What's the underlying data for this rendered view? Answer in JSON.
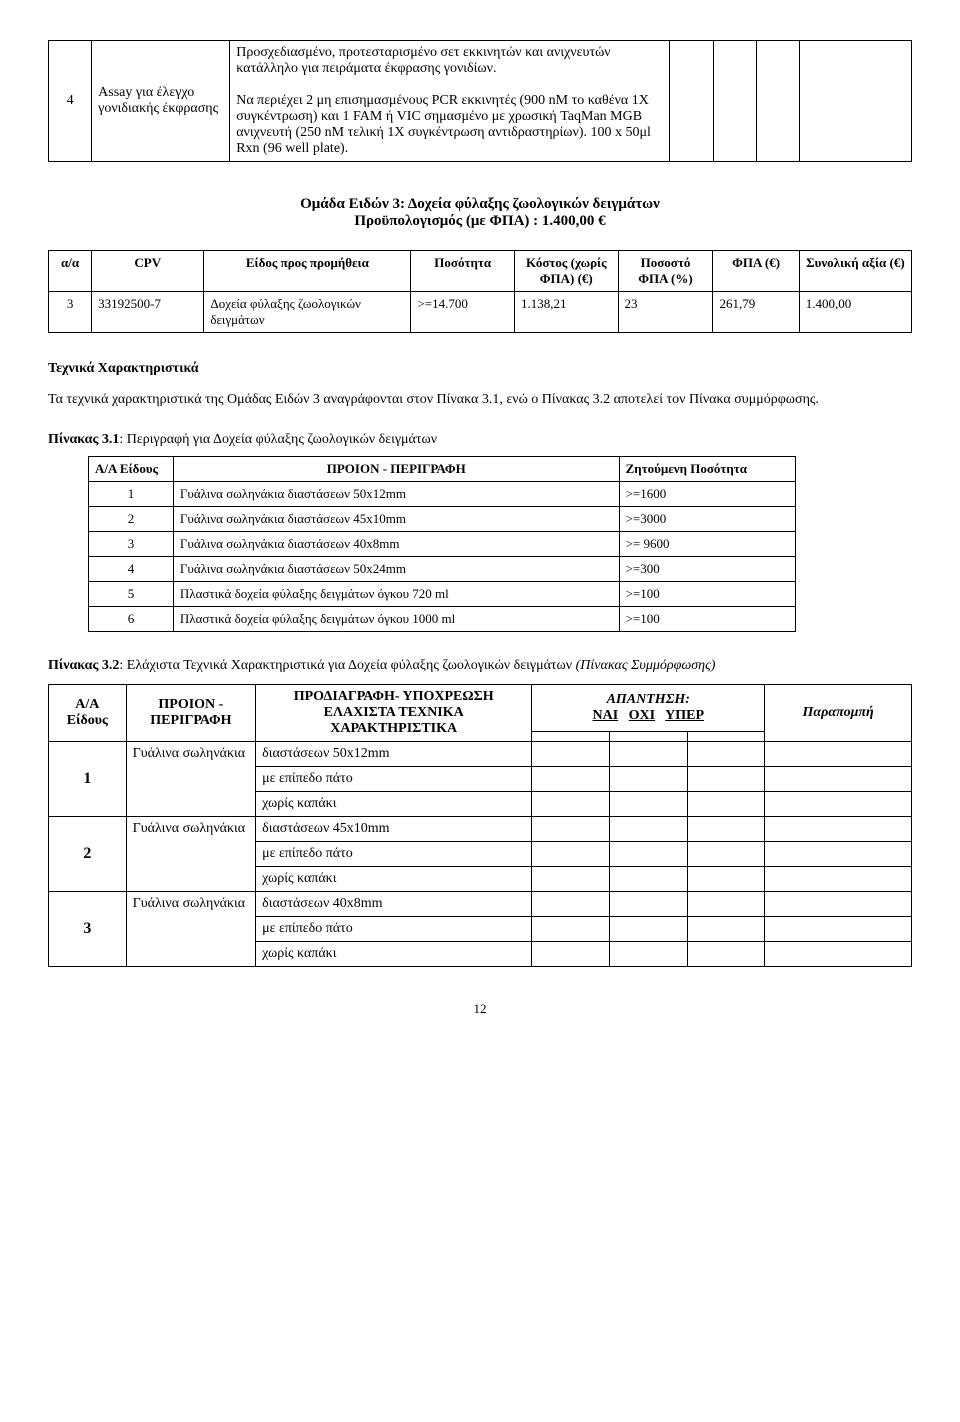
{
  "topTable": {
    "col1": "4",
    "col2": "Assay για έλεγχο γονιδιακής έκφρασης",
    "col3": "Προσχεδιασμένο, προτεσταρισμένο σετ εκκινητών και ανιχνευτών κατάλληλο για πειράματα έκφρασης γονιδίων.\n\nΝα περιέχει 2 μη επισημασμένους PCR εκκινητές (900 nM το καθένα 1X συγκέντρωση) και 1 FAM ή VIC σημασμένο με χρωσική TaqMan MGB ανιχνευτή (250 nM τελική 1X συγκέντρωση αντιδραστηρίων). 100 x 50μl Rxn (96 well plate)."
  },
  "group3": {
    "title": "Ομάδα Ειδών 3: Δοχεία φύλαξης ζωολογικών δειγμάτων",
    "subtitle": "Προϋπολογισμός (με ΦΠΑ) : 1.400,00 €"
  },
  "budgetTable": {
    "headers": {
      "aa": "α/α",
      "cpv": "CPV",
      "eidos": "Είδος προς προμήθεια",
      "posotita": "Ποσότητα",
      "kostos": "Κόστος (χωρίς ΦΠΑ) (€)",
      "pososto": "Ποσοστό ΦΠΑ (%)",
      "fpa": "ΦΠΑ (€)",
      "synoliki": "Συνολική αξία (€)"
    },
    "row": {
      "aa": "3",
      "cpv": "33192500-7",
      "eidos": "Δοχεία φύλαξης ζωολογικών δειγμάτων",
      "posotita": ">=14.700",
      "kostos": "1.138,21",
      "pososto": "23",
      "fpa": "261,79",
      "synoliki": "1.400,00"
    }
  },
  "techHeading": "Τεχνικά Χαρακτηριστικά",
  "techPara": "Τα τεχνικά χαρακτηριστικά της Ομάδας Ειδών 3 αναγράφονται στον Πίνακα 3.1, ενώ ο Πίνακας 3.2 αποτελεί τον Πίνακα συμμόρφωσης.",
  "pinakas31": {
    "title": "Πίνακας 3.1: Περιγραφή για Δοχεία φύλαξης ζωολογικών δειγμάτων",
    "headers": {
      "aa": "Α/Α Είδους",
      "proion": "ΠΡΟΙΟΝ - ΠΕΡΙΓΡΑΦΗ",
      "zit": "Ζητούμενη Ποσότητα"
    },
    "rows": [
      {
        "n": "1",
        "p": "Γυάλινα σωληνάκια διαστάσεων 50x12mm",
        "q": ">=1600"
      },
      {
        "n": "2",
        "p": "Γυάλινα σωληνάκια διαστάσεων 45x10mm",
        "q": ">=3000"
      },
      {
        "n": "3",
        "p": "Γυάλινα σωληνάκια διαστάσεων 40x8mm",
        "q": ">= 9600"
      },
      {
        "n": "4",
        "p": "Γυάλινα σωληνάκια διαστάσεων 50x24mm",
        "q": ">=300"
      },
      {
        "n": "5",
        "p": "Πλαστικά δοχεία φύλαξης δειγμάτων όγκου 720 ml",
        "q": ">=100"
      },
      {
        "n": "6",
        "p": "Πλαστικά δοχεία φύλαξης δειγμάτων όγκου 1000 ml",
        "q": ">=100"
      }
    ]
  },
  "pinakas32": {
    "titlePrefix": "Πίνακας 3.2: Ελάχιστα Τεχνικά Χαρακτηριστικά για Δοχεία φύλαξης ζωολογικών δειγμάτων ",
    "titleItalic": "(Πίνακας Συμμόρφωσης)",
    "headers": {
      "aa": "Α/Α Είδους",
      "proion": "ΠΡΟΙΟΝ - ΠΕΡΙΓΡΑΦΗ",
      "prod": "ΠΡΟΔΙΑΓΡΑΦΗ- ΥΠΟΧΡΕΩΣΗ ΕΛΑΧΙΣΤΑ ΤΕΧΝΙΚΑ ΧΑΡΑΚΤΗΡΙΣΤΙΚΑ",
      "apantisi": "ΑΠΑΝΤΗΣΗ:",
      "nai": "ΝΑΙ",
      "oxi": "ΟΧΙ",
      "yper": "ΥΠΕΡ",
      "parap": "Παραπομπή"
    },
    "groups": [
      {
        "n": "1",
        "proion": "Γυάλινα σωληνάκια",
        "specs": [
          "διαστάσεων 50x12mm",
          "με επίπεδο πάτο",
          "χωρίς καπάκι"
        ]
      },
      {
        "n": "2",
        "proion": "Γυάλινα σωληνάκια",
        "specs": [
          "διαστάσεων 45x10mm",
          "με επίπεδο πάτο",
          "χωρίς καπάκι"
        ]
      },
      {
        "n": "3",
        "proion": "Γυάλινα σωληνάκια",
        "specs": [
          "διαστάσεων 40x8mm",
          "με επίπεδο πάτο",
          "χωρίς καπάκι"
        ]
      }
    ]
  },
  "pageNumber": "12"
}
